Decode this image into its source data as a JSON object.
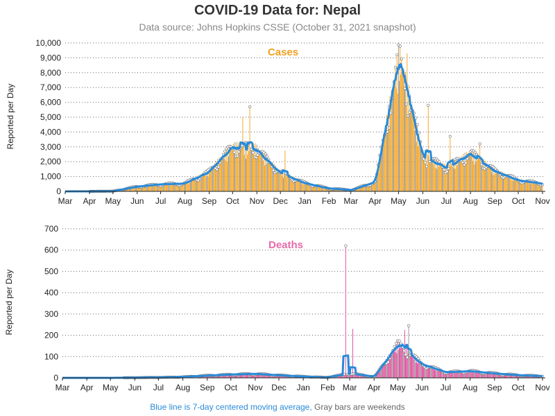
{
  "page": {
    "title": "COVID-19 Data for: Nepal",
    "subtitle": "Data source: Johns Hopkins CSSE (October 31, 2021 snapshot)",
    "footer_blue": "Blue line is 7-day centered moving average,",
    "footer_gray": "Gray bars are weekends"
  },
  "colors": {
    "cases": "#f5a623",
    "deaths": "#e24e9e",
    "average_line": "#2a8ad8",
    "weekend_bar": "#9a9a9a"
  },
  "chart_data": [
    {
      "type": "bar",
      "title": "Cases",
      "ylabel": "Reported per Day",
      "x_start": "2020-03",
      "x_end": "2021-11",
      "ylim": [
        0,
        10000
      ],
      "yticks": [
        "0",
        "1,000",
        "2,000",
        "3,000",
        "4,000",
        "5,000",
        "6,000",
        "7,000",
        "8,000",
        "9,000",
        "10,000"
      ],
      "ytick_values": [
        0,
        1000,
        2000,
        3000,
        4000,
        5000,
        6000,
        7000,
        8000,
        9000,
        10000
      ],
      "xticks": [
        "Mar",
        "Apr",
        "May",
        "Jun",
        "Jul",
        "Aug",
        "Sep",
        "Oct",
        "Nov",
        "Dec",
        "Jan",
        "Feb",
        "Mar",
        "Apr",
        "May",
        "Jun",
        "Jul",
        "Aug",
        "Sep",
        "Oct",
        "Nov"
      ],
      "grid": "horizontal dotted",
      "average_line": true,
      "approx_monthly_average": [
        0,
        0,
        10,
        300,
        450,
        500,
        1200,
        2800,
        2700,
        1200,
        550,
        200,
        80,
        600,
        8500,
        2200,
        1500,
        2400,
        1300,
        700,
        500
      ],
      "notable_points": [
        {
          "date": "2020-10-23",
          "value": 5700
        },
        {
          "date": "2020-10-14",
          "value": 5000
        },
        {
          "date": "2020-12-07",
          "value": 2750
        },
        {
          "date": "2021-05-12",
          "value": 9300
        },
        {
          "date": "2021-06-08",
          "value": 5800
        },
        {
          "date": "2021-07-06",
          "value": 3700
        },
        {
          "date": "2021-08-13",
          "value": 3200
        }
      ]
    },
    {
      "type": "bar",
      "title": "Deaths",
      "ylabel": "Reported per Day",
      "x_start": "2020-03",
      "x_end": "2021-11",
      "ylim": [
        0,
        700
      ],
      "yticks": [
        "0",
        "100",
        "200",
        "300",
        "400",
        "500",
        "600",
        "700"
      ],
      "ytick_values": [
        0,
        100,
        200,
        300,
        400,
        500,
        600,
        700
      ],
      "xticks": [
        "Mar",
        "Apr",
        "May",
        "Jun",
        "Jul",
        "Aug",
        "Sep",
        "Oct",
        "Nov",
        "Dec",
        "Jan",
        "Feb",
        "Mar",
        "Apr",
        "May",
        "Jun",
        "Jul",
        "Aug",
        "Sep",
        "Oct",
        "Nov"
      ],
      "grid": "horizontal dotted",
      "average_line": true,
      "approx_monthly_average": [
        0,
        0,
        0,
        1,
        2,
        4,
        10,
        15,
        18,
        12,
        6,
        2,
        20,
        5,
        150,
        60,
        25,
        30,
        20,
        12,
        8
      ],
      "notable_points": [
        {
          "date": "2021-02-24",
          "value": 620
        },
        {
          "date": "2021-03-05",
          "value": 230
        },
        {
          "date": "2021-05-15",
          "value": 245
        },
        {
          "date": "2021-05-10",
          "value": 225
        }
      ]
    }
  ]
}
